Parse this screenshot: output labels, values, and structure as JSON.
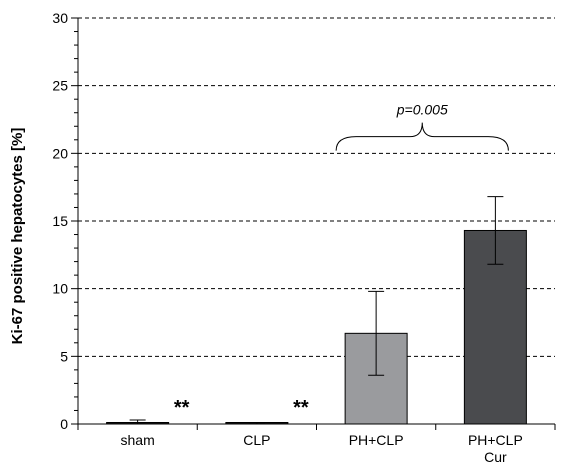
{
  "chart_data": {
    "type": "bar",
    "ylabel": "Ki-67 positive hepatocytes [%]",
    "xlabel": "",
    "ylim": [
      0,
      30
    ],
    "ytick_step": 5,
    "ytick_minor_step": 1,
    "yticks": [
      "0",
      "5",
      "10",
      "15",
      "20",
      "25",
      "30"
    ],
    "grid": "horizontal dashed",
    "categories": [
      {
        "label": "sham",
        "label2": ""
      },
      {
        "label": "CLP",
        "label2": ""
      },
      {
        "label": "PH+CLP",
        "label2": ""
      },
      {
        "label": "PH+CLP",
        "label2": "Cur"
      }
    ],
    "values": [
      0.1,
      0.05,
      6.7,
      14.3
    ],
    "error": [
      0.2,
      0.05,
      3.1,
      2.5
    ],
    "bar_colors": [
      "#1a1a1a",
      "#1a1a1a",
      "#9a9b9e",
      "#4a4b4e"
    ],
    "significance_marks": [
      {
        "category_index": 0,
        "text": "**"
      },
      {
        "category_index": 1,
        "text": "**"
      }
    ],
    "bracket": {
      "from": 2,
      "to": 3,
      "y": 20.2,
      "text": "p=0.005"
    }
  }
}
